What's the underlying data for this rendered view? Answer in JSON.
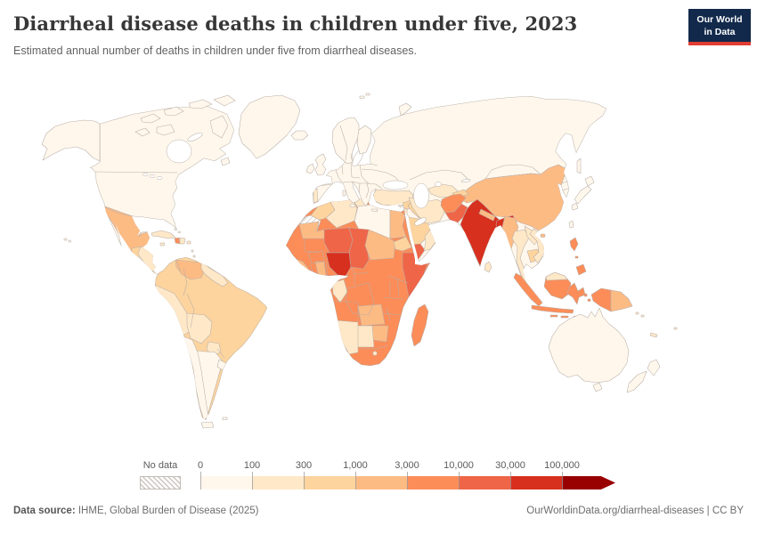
{
  "header": {
    "title": "Diarrheal disease deaths in children under five, 2023",
    "subtitle": "Estimated annual number of deaths in children under five from diarrheal diseases.",
    "logo": {
      "line1": "Our World",
      "line2": "in Data",
      "bg": "#12294b",
      "accent": "#e23d33"
    }
  },
  "legend": {
    "no_data_label": "No data",
    "bins": [
      {
        "tick": "0",
        "color": "#fff7ec"
      },
      {
        "tick": "100",
        "color": "#fee8c8"
      },
      {
        "tick": "300",
        "color": "#fdd49e"
      },
      {
        "tick": "1,000",
        "color": "#fdbb84"
      },
      {
        "tick": "3,000",
        "color": "#fc8d59"
      },
      {
        "tick": "10,000",
        "color": "#ef6548"
      },
      {
        "tick": "30,000",
        "color": "#d7301f"
      },
      {
        "tick": "100,000",
        "color": "#990000"
      }
    ]
  },
  "footer": {
    "source_label": "Data source:",
    "source_text": " IHME, Global Burden of Disease (2025)",
    "credit": "OurWorldinData.org/diarrheal-diseases | CC BY"
  },
  "chart_data": {
    "type": "heatmap",
    "title": "Diarrheal disease deaths in children under five, 2023",
    "legend_bins": [
      "0",
      "100",
      "300",
      "1,000",
      "3,000",
      "10,000",
      "30,000",
      "100,000"
    ],
    "legend_position": "bottom",
    "note": "choropleth world map; country fills encoded in map.countries"
  },
  "map": {
    "ocean": "#ffffff",
    "border_color": "#b8aea7",
    "countries": {
      "north-america-base": "#fff7ec",
      "alaska": "#fff7ec",
      "greenland": "#fff7ec",
      "arctic-islands": "#fff7ec",
      "baffin-island": "#fff7ec",
      "newfoundland": "#fff7ec",
      "iceland": "#fff7ec",
      "hawaii": "#fff7ec",
      "mexico": "#fdbb84",
      "guatemala": "#fdd49e",
      "honduras-nicaragua": "#fee8c8",
      "costa-rica-panama": "#fee8c8",
      "cuba": "#fee8c8",
      "haiti": "#fc8d59",
      "dominican-republic": "#fee8c8",
      "jamaica": "#fee8c8",
      "puerto-rico": "#fee8c8",
      "lesser-antilles": "#fee8c8",
      "bahamas": "#fff7ec",
      "south-america-base": "#fdd49e",
      "venezuela": "#fdbb84",
      "guyanas": "#fee8c8",
      "peru": "#fee8c8",
      "bolivia": "#fee8c8",
      "paraguay": "#fee8c8",
      "chile": "#fff7ec",
      "argentina": "#fff7ec",
      "uruguay": "#fff7ec",
      "tierra-del-fuego": "#fff7ec",
      "falkland-islands": "#fff7ec",
      "africa-base": "#fc8d59",
      "morocco": "#fdd49e",
      "western-sahara": "no-data",
      "algeria": "#fee8c8",
      "tunisia": "#fee8c8",
      "libya": "#fff7ec",
      "egypt": "#fdbb84",
      "mauritania": "#fdbb84",
      "niger": "#ef6548",
      "chad": "#ef6548",
      "sudan": "#fdbb84",
      "eritrea": "#fdd49e",
      "somalia": "#ef6548",
      "nigeria": "#d7301f",
      "ghana": "#fdbb84",
      "sierra-leone-liberia": "#fdbb84",
      "gabon-congo": "#fee8c8",
      "zambia": "#fdbb84",
      "zimbabwe": "#fdbb84",
      "botswana": "#fee8c8",
      "namibia": "#fee8c8",
      "lesotho": "#fee8c8",
      "madagascar": "#fc8d59",
      "eurasia-base": "#fff7ec",
      "norway-sweden": "#fff7ec",
      "finland": "#fff7ec",
      "united-kingdom": "#fff7ec",
      "ireland": "#fff7ec",
      "portugal": "#fee8c8",
      "sicily": "#fff7ec",
      "sardinia": "#fff7ec",
      "crete": "#fff7ec",
      "cyprus": "#fee8c8",
      "turkey": "#fee8c8",
      "syria": "#fdd49e",
      "levant": "#fee8c8",
      "iraq": "#fdd49e",
      "saudi-arabia": "#fdd49e",
      "yemen": "#ef6548",
      "oman": "#fee8c8",
      "iran": "#fee8c8",
      "central-asia": "#fee8c8",
      "kyrgyzstan-tajikistan": "#fdd49e",
      "afghanistan": "#fc8d59",
      "pakistan": "#ef6548",
      "india": "#d7301f",
      "nepal": "#fdbb84",
      "bangladesh": "#d7301f",
      "northeast-india": "#d7301f",
      "myanmar": "#fdbb84",
      "thailand": "#fee8c8",
      "laos": "#fee8c8",
      "cambodia": "#fdd49e",
      "vietnam": "#fee8c8",
      "china": "#fdbb84",
      "taiwan": "#fff7ec",
      "hainan": "#fdbb84",
      "sri-lanka": "#fee8c8",
      "japan": "#fff7ec",
      "sakhalin": "#fff7ec",
      "novaya-zemlya": "#fff7ec",
      "svalbard": "#fff7ec",
      "philippines": "#fc8d59",
      "sumatra": "#fc8d59",
      "java": "#fc8d59",
      "borneo": "#fc8d59",
      "borneo-malaysia": "#fee8c8",
      "sulawesi": "#fc8d59",
      "lesser-sunda": "#fc8d59",
      "timor": "#fdd49e",
      "maluku": "#fc8d59",
      "papua-indonesia": "#fc8d59",
      "papua-new-guinea": "#fdbb84",
      "solomon-islands": "#fee8c8",
      "australia": "#fff7ec",
      "tasmania": "#fff7ec",
      "new-zealand": "#fff7ec",
      "new-caledonia": "#fee8c8",
      "fiji": "#fee8c8"
    }
  }
}
